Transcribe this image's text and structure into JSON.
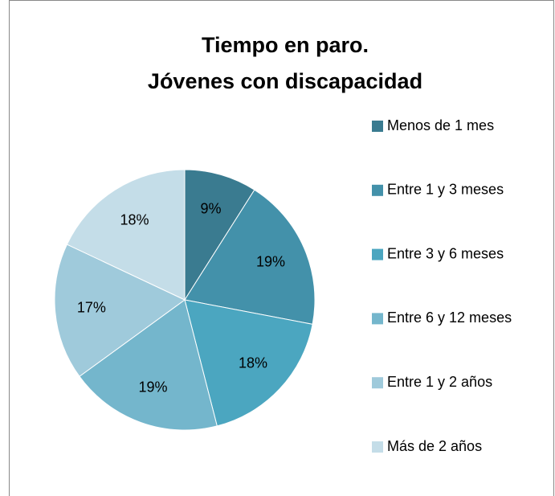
{
  "chart_data": {
    "type": "pie",
    "title": [
      "Tiempo en paro.",
      "Jóvenes con discapacidad"
    ],
    "categories": [
      "Menos de 1 mes",
      "Entre 1 y 3 meses",
      "Entre 3 y 6 meses",
      "Entre 6 y 12 meses",
      "Entre 1 y 2 años",
      "Más de 2 años"
    ],
    "values": [
      9,
      19,
      18,
      19,
      17,
      18
    ],
    "value_labels": [
      "9%",
      "19%",
      "18%",
      "19%",
      "17%",
      "18%"
    ],
    "colors": [
      "#3a7b90",
      "#4391aa",
      "#4ba6c0",
      "#74b6cc",
      "#9fcadb",
      "#c4dde8"
    ],
    "legend": "right"
  }
}
